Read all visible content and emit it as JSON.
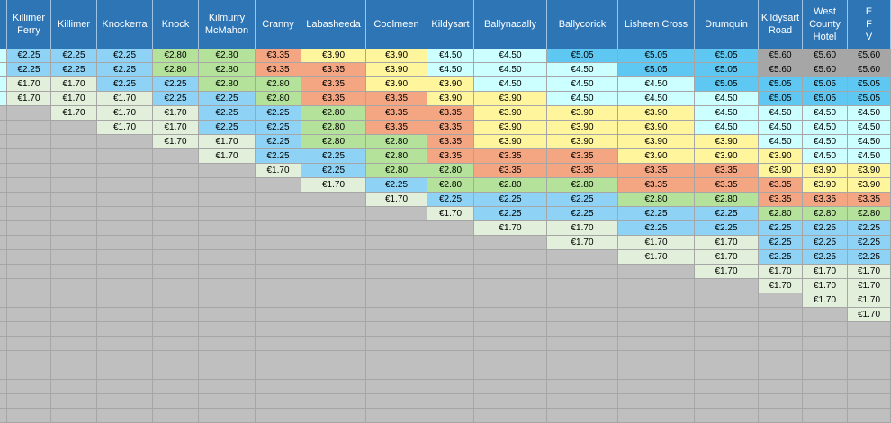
{
  "colors": {
    "header_bg": "#2e75b6",
    "header_text": "#ffffff",
    "empty_cell": "#bfbfbf",
    "fare_1_70": "#e2efda",
    "fare_2_25": "#8ed3f5",
    "fare_2_80": "#b4e29a",
    "fare_3_35": "#f4a582",
    "fare_3_90": "#fff59d",
    "fare_4_50": "#ccffff",
    "fare_5_05": "#5ec8f2",
    "fare_5_60": "#a6a6a6"
  },
  "headers": [
    "Killimer\nFerry",
    "Killimer",
    "Knockerra",
    "Knock",
    "Kilmurry\nMcMahon",
    "Cranny",
    "Labasheeda",
    "Coolmeen",
    "Kildysart",
    "Ballynacally",
    "Ballycorick",
    "Lisheen Cross",
    "Drumquin",
    "Kildysart\nRoad",
    "West\nCounty\nHotel",
    "E\nF\nV"
  ],
  "rows": [
    [
      null,
      "€2.25",
      "€2.25",
      "€2.25",
      "€2.80",
      "€2.80",
      "€3.35",
      "€3.90",
      "€3.90",
      "€4.50",
      "€4.50",
      "€5.05",
      "€5.05",
      "€5.05",
      "€5.60",
      "€5.60",
      "€5.60"
    ],
    [
      null,
      "€2.25",
      "€2.25",
      "€2.25",
      "€2.80",
      "€2.80",
      "€3.35",
      "€3.35",
      "€3.90",
      "€4.50",
      "€4.50",
      "€4.50",
      "€5.05",
      "€5.05",
      "€5.60",
      "€5.60",
      "€5.60"
    ],
    [
      null,
      "€1.70",
      "€1.70",
      "€2.25",
      "€2.25",
      "€2.80",
      "€2.80",
      "€3.35",
      "€3.90",
      "€3.90",
      "€4.50",
      "€4.50",
      "€4.50",
      "€5.05",
      "€5.05",
      "€5.05",
      "€5.05"
    ],
    [
      null,
      "€1.70",
      "€1.70",
      "€1.70",
      "€2.25",
      "€2.25",
      "€2.80",
      "€3.35",
      "€3.35",
      "€3.90",
      "€3.90",
      "€4.50",
      "€4.50",
      "€4.50",
      "€5.05",
      "€5.05",
      "€5.05"
    ],
    [
      null,
      null,
      "€1.70",
      "€1.70",
      "€1.70",
      "€2.25",
      "€2.25",
      "€2.80",
      "€3.35",
      "€3.35",
      "€3.90",
      "€3.90",
      "€3.90",
      "€4.50",
      "€4.50",
      "€4.50",
      "€4.50"
    ],
    [
      null,
      null,
      null,
      "€1.70",
      "€1.70",
      "€2.25",
      "€2.25",
      "€2.80",
      "€3.35",
      "€3.35",
      "€3.90",
      "€3.90",
      "€3.90",
      "€4.50",
      "€4.50",
      "€4.50",
      "€4.50"
    ],
    [
      null,
      null,
      null,
      null,
      "€1.70",
      "€1.70",
      "€2.25",
      "€2.80",
      "€2.80",
      "€3.35",
      "€3.90",
      "€3.90",
      "€3.90",
      "€3.90",
      "€4.50",
      "€4.50",
      "€4.50"
    ],
    [
      null,
      null,
      null,
      null,
      null,
      "€1.70",
      "€2.25",
      "€2.25",
      "€2.80",
      "€3.35",
      "€3.35",
      "€3.35",
      "€3.90",
      "€3.90",
      "€3.90",
      "€4.50",
      "€4.50"
    ],
    [
      null,
      null,
      null,
      null,
      null,
      null,
      "€1.70",
      "€2.25",
      "€2.80",
      "€2.80",
      "€3.35",
      "€3.35",
      "€3.35",
      "€3.35",
      "€3.90",
      "€3.90",
      "€3.90"
    ],
    [
      null,
      null,
      null,
      null,
      null,
      null,
      null,
      "€1.70",
      "€2.25",
      "€2.80",
      "€2.80",
      "€2.80",
      "€3.35",
      "€3.35",
      "€3.35",
      "€3.90",
      "€3.90"
    ],
    [
      null,
      null,
      null,
      null,
      null,
      null,
      null,
      null,
      "€1.70",
      "€2.25",
      "€2.25",
      "€2.25",
      "€2.80",
      "€2.80",
      "€3.35",
      "€3.35",
      "€3.35"
    ],
    [
      null,
      null,
      null,
      null,
      null,
      null,
      null,
      null,
      null,
      "€1.70",
      "€2.25",
      "€2.25",
      "€2.25",
      "€2.25",
      "€2.80",
      "€2.80",
      "€2.80"
    ],
    [
      null,
      null,
      null,
      null,
      null,
      null,
      null,
      null,
      null,
      null,
      "€1.70",
      "€1.70",
      "€2.25",
      "€2.25",
      "€2.25",
      "€2.25",
      "€2.25"
    ],
    [
      null,
      null,
      null,
      null,
      null,
      null,
      null,
      null,
      null,
      null,
      null,
      "€1.70",
      "€1.70",
      "€1.70",
      "€2.25",
      "€2.25",
      "€2.25"
    ],
    [
      null,
      null,
      null,
      null,
      null,
      null,
      null,
      null,
      null,
      null,
      null,
      null,
      "€1.70",
      "€1.70",
      "€2.25",
      "€2.25",
      "€2.25"
    ],
    [
      null,
      null,
      null,
      null,
      null,
      null,
      null,
      null,
      null,
      null,
      null,
      null,
      null,
      "€1.70",
      "€1.70",
      "€1.70",
      "€1.70"
    ],
    [
      null,
      null,
      null,
      null,
      null,
      null,
      null,
      null,
      null,
      null,
      null,
      null,
      null,
      null,
      "€1.70",
      "€1.70",
      "€1.70"
    ],
    [
      null,
      null,
      null,
      null,
      null,
      null,
      null,
      null,
      null,
      null,
      null,
      null,
      null,
      null,
      null,
      "€1.70",
      "€1.70"
    ],
    [
      null,
      null,
      null,
      null,
      null,
      null,
      null,
      null,
      null,
      null,
      null,
      null,
      null,
      null,
      null,
      null,
      "€1.70"
    ]
  ]
}
